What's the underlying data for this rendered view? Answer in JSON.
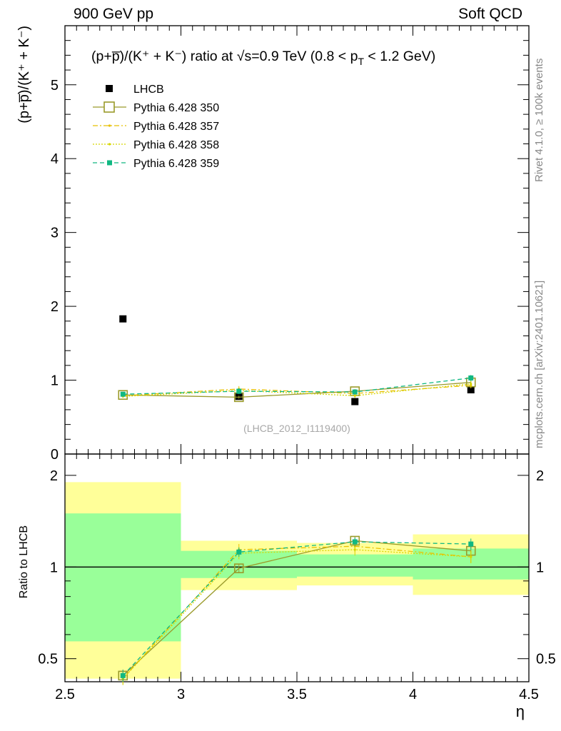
{
  "header": {
    "energy_label": "900 GeV pp",
    "category_label": "Soft QCD"
  },
  "side_labels": {
    "rivet": "Rivet 4.1.0, ≥ 100k events",
    "mcplots": "mcplots.cern.ch [arXiv:2401.10621]"
  },
  "chart_data": [
    {
      "type": "scatter",
      "title": "(p+p̅)/(K⁺ + K⁻) ratio at √s=0.9 TeV (0.8 < p_T < 1.2 GeV)",
      "title_main": "(p+p̅)/(K⁺ + K⁻) ratio at √s=0.9 TeV (0.8 < p",
      "title_sub": "T",
      "title_tail": " < 1.2 GeV)",
      "ylabel": "(p+p̅)/(K⁺ + K⁻)",
      "xlabel": "",
      "xlim": [
        2.5,
        4.5
      ],
      "ylim": [
        0,
        5.8
      ],
      "yticks": [
        0,
        1,
        2,
        3,
        4,
        5
      ],
      "analysis_label": "(LHCB_2012_I1119400)",
      "x": [
        2.75,
        3.25,
        3.75,
        4.25
      ],
      "reference": {
        "name": "LHCB",
        "color": "#000000",
        "values": [
          1.83,
          0.78,
          0.71,
          0.87
        ]
      },
      "series": [
        {
          "name": "Pythia 6.428 350",
          "color": "#9a9a2a",
          "style": "solid",
          "marker": "open-square",
          "values": [
            0.8,
            0.77,
            0.85,
            0.97
          ],
          "errors": [
            0.02,
            0.02,
            0.03,
            0.04
          ]
        },
        {
          "name": "Pythia 6.428 357",
          "color": "#e8c000",
          "style": "dashdot",
          "marker": "small-dot",
          "values": [
            0.79,
            0.88,
            0.82,
            0.93
          ],
          "errors": [
            0.02,
            0.04,
            0.03,
            0.04
          ]
        },
        {
          "name": "Pythia 6.428 358",
          "color": "#d6d600",
          "style": "dotted",
          "marker": "small-dot",
          "values": [
            0.78,
            0.86,
            0.79,
            0.95
          ],
          "errors": [
            0.02,
            0.04,
            0.03,
            0.04
          ]
        },
        {
          "name": "Pythia 6.428 359",
          "color": "#10b882",
          "style": "dashed",
          "marker": "filled-square",
          "values": [
            0.81,
            0.85,
            0.84,
            1.03
          ],
          "errors": [
            0.02,
            0.04,
            0.03,
            0.04
          ]
        }
      ]
    },
    {
      "type": "scatter",
      "title": "",
      "ylabel": "Ratio to LHCB",
      "xlabel": "η",
      "xlim": [
        2.5,
        4.5
      ],
      "ylim": [
        0.42,
        2.35
      ],
      "ytick_labels": [
        {
          "v": 0.5,
          "t": "0.5"
        },
        {
          "v": 1,
          "t": "1"
        },
        {
          "v": 2,
          "t": "2"
        }
      ],
      "xtick_labels": [
        {
          "v": 2.5,
          "t": "2.5"
        },
        {
          "v": 3,
          "t": "3"
        },
        {
          "v": 3.5,
          "t": "3.5"
        },
        {
          "v": 4,
          "t": "4"
        },
        {
          "v": 4.5,
          "t": "4.5"
        }
      ],
      "bands": [
        {
          "x": [
            2.5,
            3.0
          ],
          "yellow": [
            0.43,
            1.9
          ],
          "green": [
            0.57,
            1.5
          ]
        },
        {
          "x": [
            3.0,
            3.5
          ],
          "yellow": [
            0.84,
            1.22
          ],
          "green": [
            0.92,
            1.13
          ]
        },
        {
          "x": [
            3.5,
            4.0
          ],
          "yellow": [
            0.87,
            1.2
          ],
          "green": [
            0.93,
            1.1
          ]
        },
        {
          "x": [
            4.0,
            4.5
          ],
          "yellow": [
            0.81,
            1.28
          ],
          "green": [
            0.91,
            1.15
          ]
        }
      ],
      "x": [
        2.75,
        3.25,
        3.75,
        4.25
      ],
      "series": [
        {
          "name": "Pythia 6.428 350",
          "values": [
            0.44,
            0.99,
            1.22,
            1.13
          ],
          "errors": [
            0.02,
            0.03,
            0.04,
            0.04
          ]
        },
        {
          "name": "Pythia 6.428 357",
          "values": [
            0.43,
            1.14,
            1.17,
            1.08
          ],
          "errors": [
            0.02,
            0.05,
            0.05,
            0.05
          ]
        },
        {
          "name": "Pythia 6.428 358",
          "values": [
            0.43,
            1.11,
            1.14,
            1.08
          ],
          "errors": [
            0.02,
            0.05,
            0.05,
            0.05
          ]
        },
        {
          "name": "Pythia 6.428 359",
          "values": [
            0.44,
            1.12,
            1.21,
            1.19
          ],
          "errors": [
            0.02,
            0.04,
            0.04,
            0.05
          ]
        }
      ]
    }
  ]
}
